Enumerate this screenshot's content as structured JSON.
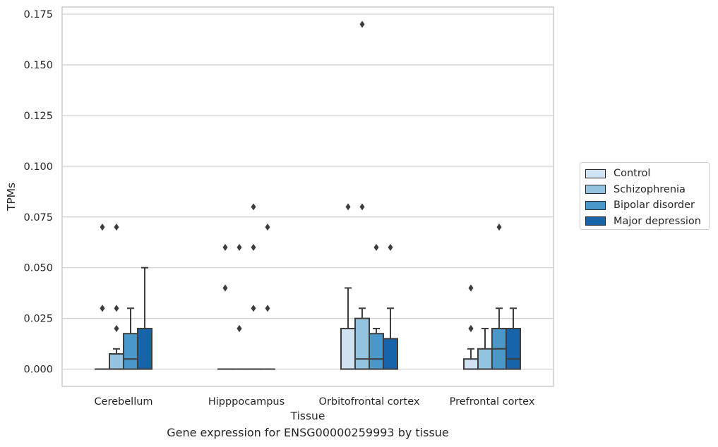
{
  "chart_data": {
    "type": "box",
    "categories": [
      "Cerebellum",
      "Hipppocampus",
      "Orbitofrontal cortex",
      "Prefrontal cortex"
    ],
    "xlabel": "Tissue",
    "ylabel": "TPMs",
    "caption": "Gene expression for ENSG00000259993 by tissue",
    "ylim": [
      -0.0085,
      0.1785
    ],
    "yticks": [
      0.0,
      0.025,
      0.05,
      0.075,
      0.1,
      0.125,
      0.15,
      0.175
    ],
    "ytick_labels": [
      "0.000",
      "0.025",
      "0.050",
      "0.075",
      "0.100",
      "0.125",
      "0.150",
      "0.175"
    ],
    "grid": "horizontal",
    "legend_position": "right",
    "series": [
      {
        "name": "Control",
        "color": "#d0e1f2",
        "boxes": [
          {
            "q1": 0,
            "median": 0,
            "q3": 0,
            "whislo": 0,
            "whishi": 0,
            "fliers": [
              0.07,
              0.03,
              0.03
            ]
          },
          {
            "q1": 0,
            "median": 0,
            "q3": 0,
            "whislo": 0,
            "whishi": 0,
            "fliers": [
              0.06,
              0.04
            ]
          },
          {
            "q1": 0,
            "median": 0,
            "q3": 0.02,
            "whislo": 0,
            "whishi": 0.04,
            "fliers": [
              0.08
            ]
          },
          {
            "q1": 0,
            "median": 0,
            "q3": 0.005,
            "whislo": 0,
            "whishi": 0.01,
            "fliers": [
              0.04,
              0.02,
              0.02
            ]
          }
        ]
      },
      {
        "name": "Schizophrenia",
        "color": "#94c4df",
        "boxes": [
          {
            "q1": 0,
            "median": 0,
            "q3": 0.0075,
            "whislo": 0,
            "whishi": 0.01,
            "fliers": [
              0.07,
              0.03,
              0.02
            ]
          },
          {
            "q1": 0,
            "median": 0,
            "q3": 0,
            "whislo": 0,
            "whishi": 0,
            "fliers": [
              0.06,
              0.02,
              0.02
            ]
          },
          {
            "q1": 0,
            "median": 0.005,
            "q3": 0.025,
            "whislo": 0,
            "whishi": 0.03,
            "fliers": [
              0.17,
              0.08
            ]
          },
          {
            "q1": 0,
            "median": 0,
            "q3": 0.01,
            "whislo": 0,
            "whishi": 0.02,
            "fliers": []
          }
        ]
      },
      {
        "name": "Bipolar disorder",
        "color": "#4a98c9",
        "boxes": [
          {
            "q1": 0,
            "median": 0.005,
            "q3": 0.0175,
            "whislo": 0,
            "whishi": 0.03,
            "fliers": []
          },
          {
            "q1": 0,
            "median": 0,
            "q3": 0,
            "whislo": 0,
            "whishi": 0,
            "fliers": [
              0.08,
              0.06,
              0.03
            ]
          },
          {
            "q1": 0,
            "median": 0.005,
            "q3": 0.0175,
            "whislo": 0,
            "whishi": 0.02,
            "fliers": [
              0.06
            ]
          },
          {
            "q1": 0,
            "median": 0.01,
            "q3": 0.02,
            "whislo": 0,
            "whishi": 0.03,
            "fliers": [
              0.07
            ]
          }
        ]
      },
      {
        "name": "Major depression",
        "color": "#1764ab",
        "boxes": [
          {
            "q1": 0,
            "median": 0,
            "q3": 0.02,
            "whislo": 0,
            "whishi": 0.05,
            "fliers": []
          },
          {
            "q1": 0,
            "median": 0,
            "q3": 0,
            "whislo": 0,
            "whishi": 0,
            "fliers": [
              0.07,
              0.03
            ]
          },
          {
            "q1": 0,
            "median": 0,
            "q3": 0.015,
            "whislo": 0,
            "whishi": 0.03,
            "fliers": [
              0.06
            ]
          },
          {
            "q1": 0,
            "median": 0.005,
            "q3": 0.02,
            "whislo": 0,
            "whishi": 0.03,
            "fliers": []
          }
        ]
      }
    ]
  }
}
